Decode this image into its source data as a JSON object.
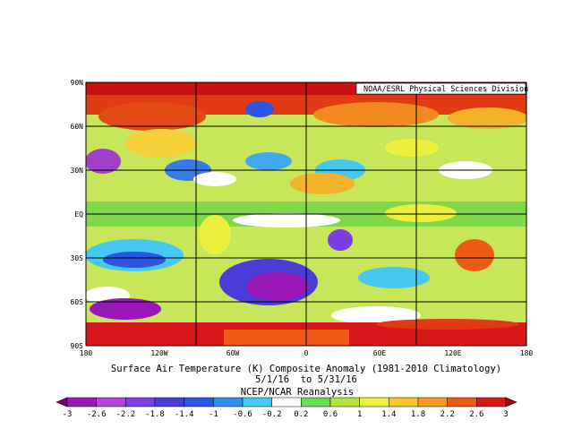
{
  "map": {
    "credit": "NOAA/ESRL Physical Sciences Division",
    "lat_labels": [
      "90N",
      "60N",
      "30N",
      "EQ",
      "30S",
      "60S",
      "90S"
    ],
    "lon_labels": [
      "180",
      "120W",
      "60W",
      "0",
      "60E",
      "120E",
      "180"
    ],
    "title": "Surface Air Temperature (K) Composite Anomaly (1981-2010 Climatology)",
    "dates": "5/1/16  to 5/31/16",
    "source": "NCEP/NCAR Reanalysis"
  },
  "colorbar": {
    "ticks": [
      "-3",
      "-2.6",
      "-2.2",
      "-1.8",
      "-1.4",
      "-1",
      "-0.6",
      "-0.2",
      "0.2",
      "0.6",
      "1",
      "1.4",
      "1.8",
      "2.2",
      "2.6",
      "3"
    ],
    "colors": [
      "#7a0080",
      "#9b18b8",
      "#b045d8",
      "#7d3ce6",
      "#4a3cd8",
      "#2a55e6",
      "#2f8ff0",
      "#45c8f2",
      "#ffffff",
      "#66dd55",
      "#b5e43c",
      "#ecf03a",
      "#f6c82a",
      "#f29a1e",
      "#ec5a14",
      "#d81818",
      "#a80808"
    ]
  }
}
